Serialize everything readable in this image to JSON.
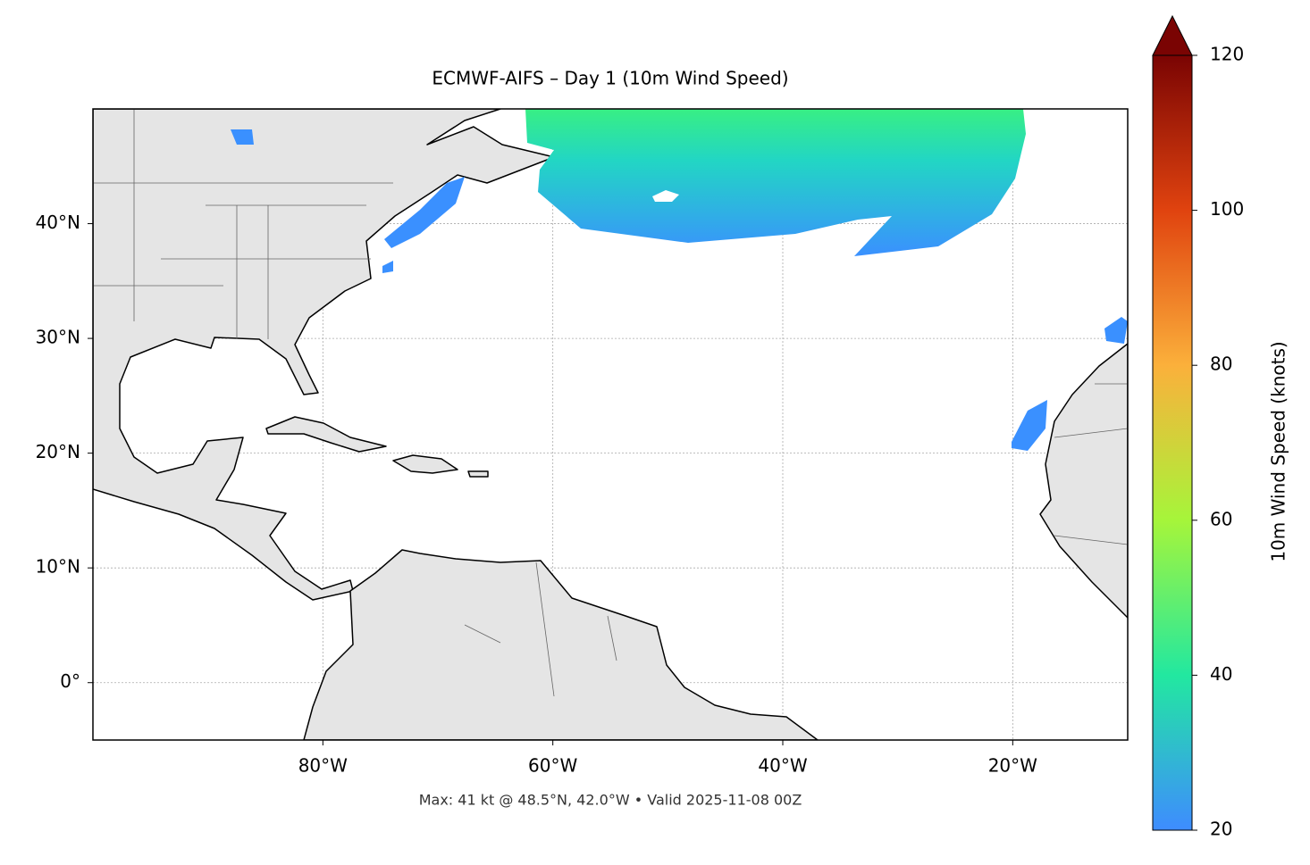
{
  "chart_data": {
    "type": "map",
    "title": "ECMWF-AIFS – Day 1 (10m Wind Speed)",
    "note": "Max: 41 kt @ 48.5°N, 42.0°W • Valid 2025-11-08 00Z",
    "xlim": [
      -100,
      -10
    ],
    "ylim": [
      -5,
      50
    ],
    "xticks": [
      {
        "value": -80,
        "label": "80°W"
      },
      {
        "value": -60,
        "label": "60°W"
      },
      {
        "value": -40,
        "label": "40°W"
      },
      {
        "value": -20,
        "label": "20°W"
      }
    ],
    "yticks": [
      {
        "value": 0,
        "label": "0°"
      },
      {
        "value": 10,
        "label": "10°N"
      },
      {
        "value": 20,
        "label": "20°N"
      },
      {
        "value": 30,
        "label": "30°N"
      },
      {
        "value": 40,
        "label": "40°N"
      }
    ],
    "grid": true,
    "colorbar": {
      "label": "10m Wind Speed (knots)",
      "lim": [
        20,
        120
      ],
      "ticks": [
        20,
        40,
        60,
        80,
        100,
        120
      ],
      "extend": "max",
      "colors": [
        "#3e8cff",
        "#22e8a0",
        "#a6f53a",
        "#fbb03b",
        "#e0430f",
        "#7a0403"
      ]
    }
  }
}
